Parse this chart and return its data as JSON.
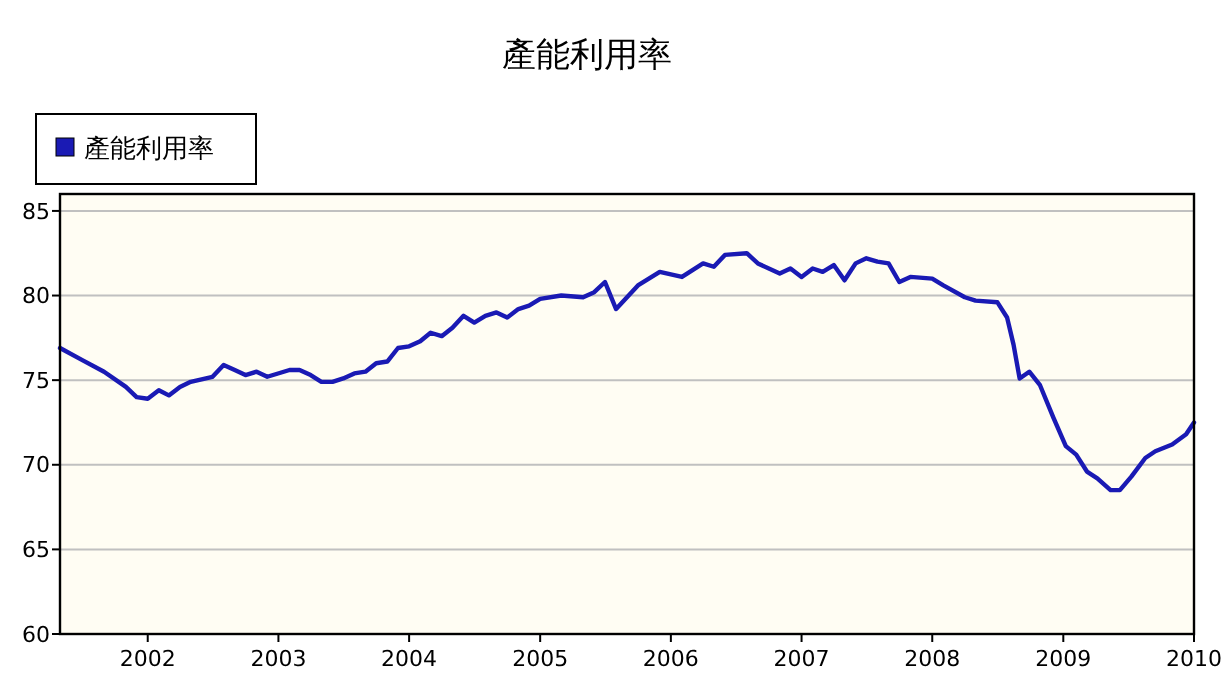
{
  "chart_data": {
    "type": "line",
    "title": "產能利用率",
    "legend": "top left",
    "grid": "y",
    "marker": "none",
    "line_style": "solid",
    "xlim": [
      "2001-05",
      "2010-01"
    ],
    "xticks": [
      {
        "value": "2002",
        "label": "2002"
      },
      {
        "value": "2003",
        "label": "2003"
      },
      {
        "value": "2004",
        "label": "2004"
      },
      {
        "value": "2005",
        "label": "2005"
      },
      {
        "value": "2006",
        "label": "2006"
      },
      {
        "value": "2007",
        "label": "2007"
      },
      {
        "value": "2008",
        "label": "2008"
      },
      {
        "value": "2009",
        "label": "2009"
      },
      {
        "value": "2010",
        "label": "2010"
      }
    ],
    "ylim": [
      60,
      86
    ],
    "yticks": [
      60,
      65,
      70,
      75,
      80,
      85
    ],
    "x": [
      "2001-05",
      "2001-07",
      "2001-09",
      "2001-11",
      "2001-12",
      "2002-01",
      "2002-02",
      "2002-03",
      "2002-04",
      "2002-05",
      "2002-07",
      "2002-08",
      "2002-09",
      "2002-10",
      "2002-11",
      "2002-12",
      "2003-02",
      "2003-03",
      "2003-04",
      "2003-05",
      "2003-06",
      "2003-07",
      "2003-08",
      "2003-09",
      "2003-10",
      "2003-11",
      "2003-12",
      "2004-01",
      "2004-02",
      "2004-03",
      "2004-04",
      "2004-05",
      "2004-06",
      "2004-07",
      "2004-08",
      "2004-09",
      "2004-10",
      "2004-11",
      "2004-12",
      "2005-01",
      "2005-03",
      "2005-05",
      "2005-06",
      "2005-07",
      "2005-08",
      "2005-10",
      "2005-12",
      "2006-02",
      "2006-04",
      "2006-05",
      "2006-06",
      "2006-08",
      "2006-09",
      "2006-11",
      "2006-12",
      "2007-01",
      "2007-02",
      "2007-03",
      "2007-04",
      "2007-05",
      "2007-06",
      "2007-07",
      "2007-08",
      "2007-09",
      "2007-10",
      "2007-11",
      "2008-01",
      "2008-02",
      "2008-04",
      "2008-05",
      "2008-07",
      "2008-07-28",
      "2008-08-15",
      "2008-09-01",
      "2008-09-28",
      "2008-10-28",
      "2008-12-04",
      "2009-01-08",
      "2009-02-06",
      "2009-03-08",
      "2009-04-06",
      "2009-05-13",
      "2009-06-08",
      "2009-07-10",
      "2009-08-18",
      "2009-09-15",
      "2009-11-01",
      "2009-12-10",
      "2010-01-01"
    ],
    "series": [
      {
        "name": "產能利用率",
        "color": "#1a1ab4",
        "values": [
          76.9,
          76.2,
          75.5,
          74.6,
          74.0,
          73.9,
          74.4,
          74.1,
          74.6,
          74.9,
          75.2,
          75.9,
          75.6,
          75.3,
          75.5,
          75.2,
          75.6,
          75.6,
          75.3,
          74.9,
          74.9,
          75.1,
          75.4,
          75.5,
          76.0,
          76.1,
          76.9,
          77.0,
          77.3,
          77.8,
          77.6,
          78.1,
          78.8,
          78.4,
          78.8,
          79.0,
          78.7,
          79.2,
          79.4,
          79.8,
          80.0,
          79.9,
          80.2,
          80.8,
          79.2,
          80.6,
          81.4,
          81.1,
          81.9,
          81.7,
          82.4,
          82.5,
          81.9,
          81.3,
          81.6,
          81.1,
          81.6,
          81.4,
          81.8,
          80.9,
          81.9,
          82.2,
          82.0,
          81.9,
          80.8,
          81.1,
          81.0,
          80.6,
          79.9,
          79.7,
          79.6,
          78.7,
          77.1,
          75.1,
          75.5,
          74.7,
          72.8,
          71.1,
          70.6,
          69.6,
          69.2,
          68.5,
          68.5,
          69.3,
          70.4,
          70.8,
          71.2,
          71.8,
          72.5
        ]
      }
    ]
  }
}
